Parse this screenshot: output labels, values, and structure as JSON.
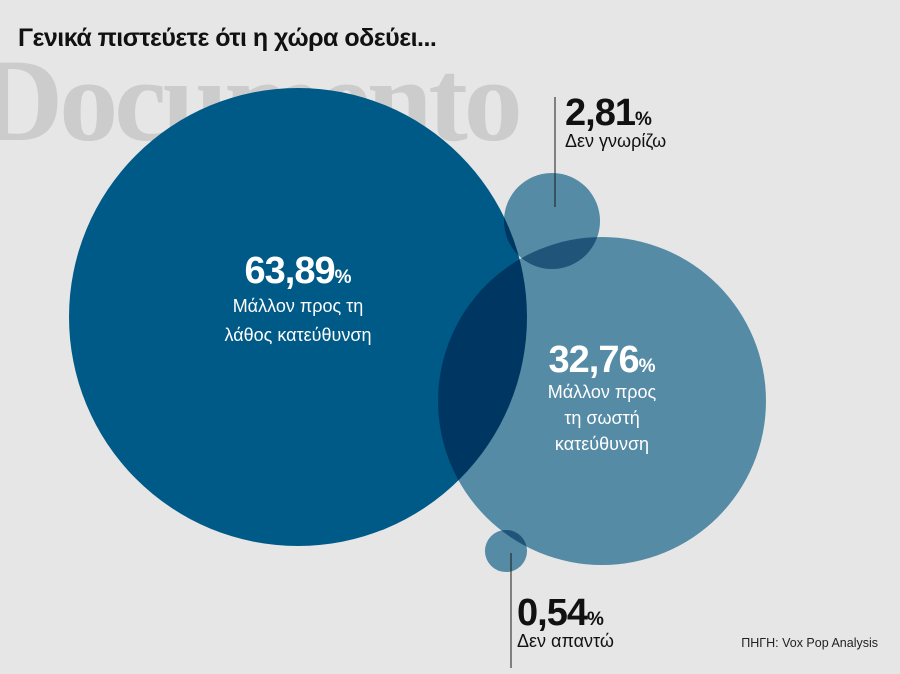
{
  "title": "Γενικά πιστεύετε ότι η χώρα οδεύει...",
  "watermark": "Documento",
  "source": "ΠΗΓΗ: Vox Pop Analysis",
  "colors": {
    "background": "#e6e6e6",
    "dark_blue": "#005a87",
    "light_blue": "#5f9ab8",
    "overlap": "#003f6e",
    "text_dark": "#111111",
    "text_light": "#ffffff"
  },
  "chart_data": {
    "type": "bubble",
    "unit": "%",
    "items": [
      {
        "value": 63.89,
        "value_text": "63,89",
        "unit": "%",
        "label_lines": [
          "Μάλλον προς τη",
          "λάθος κατεύθυνση"
        ],
        "color": "#005a87"
      },
      {
        "value": 32.76,
        "value_text": "32,76",
        "unit": "%",
        "label_lines": [
          "Μάλλον προς",
          "τη σωστή",
          "κατεύθυνση"
        ],
        "color": "#5f9ab8"
      },
      {
        "value": 2.81,
        "value_text": "2,81",
        "unit": "%",
        "label_lines": [
          "Δεν γνωρίζω"
        ],
        "color": "#5f9ab8"
      },
      {
        "value": 0.54,
        "value_text": "0,54",
        "unit": "%",
        "label_lines": [
          "Δεν απαντώ"
        ],
        "color": "#5f9ab8"
      }
    ]
  }
}
